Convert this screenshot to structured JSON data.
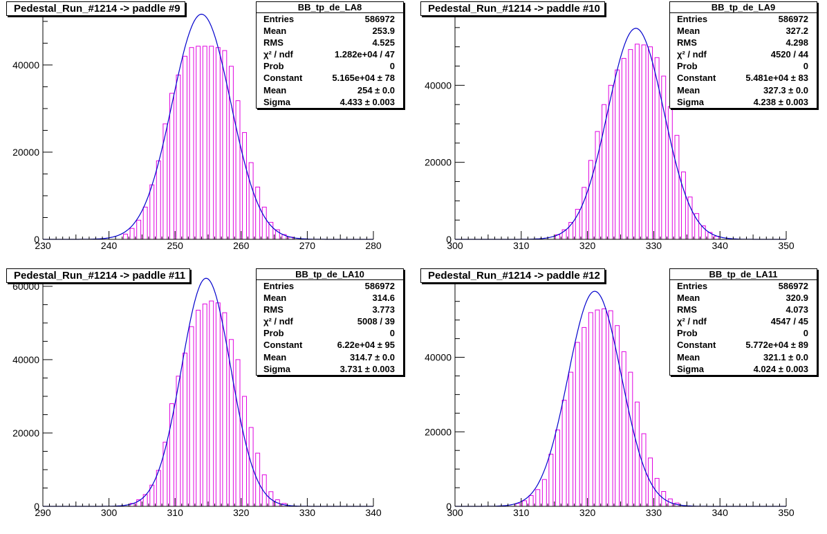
{
  "colors": {
    "histogram": "#e000e0",
    "fit": "#0000cc",
    "frame": "#000000"
  },
  "panels": [
    {
      "title": "Pedestal_Run_#1214 -> paddle #9",
      "stats_title": "BB_tp_de_LA8",
      "stats": [
        {
          "label": "Entries",
          "value": "586972"
        },
        {
          "label": "Mean",
          "value": "253.9"
        },
        {
          "label": "RMS",
          "value": "4.525"
        },
        {
          "label": "χ² / ndf",
          "value": "1.282e+04 / 47"
        },
        {
          "label": "Prob",
          "value": "0"
        },
        {
          "label": "Constant",
          "value": "5.165e+04 ± 78"
        },
        {
          "label": "Mean",
          "value": "254 ± 0.0"
        },
        {
          "label": "Sigma",
          "value": "4.433 ± 0.003"
        }
      ]
    },
    {
      "title": "Pedestal_Run_#1214 -> paddle #10",
      "stats_title": "BB_tp_de_LA9",
      "stats": [
        {
          "label": "Entries",
          "value": "586972"
        },
        {
          "label": "Mean",
          "value": "327.2"
        },
        {
          "label": "RMS",
          "value": "4.298"
        },
        {
          "label": "χ² / ndf",
          "value": "4520 / 44"
        },
        {
          "label": "Prob",
          "value": "0"
        },
        {
          "label": "Constant",
          "value": "5.481e+04 ± 83"
        },
        {
          "label": "Mean",
          "value": "327.3 ± 0.0"
        },
        {
          "label": "Sigma",
          "value": "4.238 ± 0.003"
        }
      ]
    },
    {
      "title": "Pedestal_Run_#1214 -> paddle #11",
      "stats_title": "BB_tp_de_LA10",
      "stats": [
        {
          "label": "Entries",
          "value": "586972"
        },
        {
          "label": "Mean",
          "value": "314.6"
        },
        {
          "label": "RMS",
          "value": "3.773"
        },
        {
          "label": "χ² / ndf",
          "value": "5008 / 39"
        },
        {
          "label": "Prob",
          "value": "0"
        },
        {
          "label": "Constant",
          "value": "6.22e+04 ± 95"
        },
        {
          "label": "Mean",
          "value": "314.7 ± 0.0"
        },
        {
          "label": "Sigma",
          "value": "3.731 ± 0.003"
        }
      ]
    },
    {
      "title": "Pedestal_Run_#1214 -> paddle #12",
      "stats_title": "BB_tp_de_LA11",
      "stats": [
        {
          "label": "Entries",
          "value": "586972"
        },
        {
          "label": "Mean",
          "value": "320.9"
        },
        {
          "label": "RMS",
          "value": "4.073"
        },
        {
          "label": "χ² / ndf",
          "value": "4547 / 45"
        },
        {
          "label": "Prob",
          "value": "0"
        },
        {
          "label": "Constant",
          "value": "5.772e+04 ± 89"
        },
        {
          "label": "Mean",
          "value": "321.1 ± 0.0"
        },
        {
          "label": "Sigma",
          "value": "4.024 ± 0.003"
        }
      ]
    }
  ],
  "chart_data": [
    {
      "type": "bar",
      "xlim": [
        230,
        280
      ],
      "ylim": [
        0,
        53000
      ],
      "x_ticks": [
        "230",
        "240",
        "250",
        "260",
        "270",
        "280"
      ],
      "y_ticks": [
        "0",
        "20000",
        "40000"
      ],
      "bin_width": 1,
      "bins": [
        {
          "x": 242,
          "y": 1200
        },
        {
          "x": 243,
          "y": 2500
        },
        {
          "x": 244,
          "y": 4400
        },
        {
          "x": 245,
          "y": 7400
        },
        {
          "x": 246,
          "y": 12500
        },
        {
          "x": 247,
          "y": 18000
        },
        {
          "x": 248,
          "y": 26500
        },
        {
          "x": 249,
          "y": 33500
        },
        {
          "x": 250,
          "y": 37700
        },
        {
          "x": 251,
          "y": 42000
        },
        {
          "x": 252,
          "y": 44000
        },
        {
          "x": 253,
          "y": 44300
        },
        {
          "x": 254,
          "y": 44300
        },
        {
          "x": 255,
          "y": 44300
        },
        {
          "x": 256,
          "y": 44000
        },
        {
          "x": 257,
          "y": 43300
        },
        {
          "x": 258,
          "y": 39700
        },
        {
          "x": 259,
          "y": 31800
        },
        {
          "x": 260,
          "y": 24500
        },
        {
          "x": 261,
          "y": 17600
        },
        {
          "x": 262,
          "y": 12000
        },
        {
          "x": 263,
          "y": 7400
        },
        {
          "x": 264,
          "y": 3900
        },
        {
          "x": 265,
          "y": 2200
        },
        {
          "x": 266,
          "y": 1100
        },
        {
          "x": 267,
          "y": 500
        }
      ],
      "fit": {
        "constant": 51650,
        "mean": 254,
        "sigma": 4.433
      }
    },
    {
      "type": "bar",
      "xlim": [
        300,
        350
      ],
      "ylim": [
        0,
        60000
      ],
      "x_ticks": [
        "300",
        "310",
        "320",
        "330",
        "340",
        "350"
      ],
      "y_ticks": [
        "0",
        "20000",
        "40000"
      ],
      "bin_width": 1,
      "bins": [
        {
          "x": 315,
          "y": 1200
        },
        {
          "x": 316,
          "y": 2500
        },
        {
          "x": 317,
          "y": 4400
        },
        {
          "x": 318,
          "y": 7800
        },
        {
          "x": 319,
          "y": 13500
        },
        {
          "x": 320,
          "y": 20500
        },
        {
          "x": 321,
          "y": 28000
        },
        {
          "x": 322,
          "y": 35000
        },
        {
          "x": 323,
          "y": 40000
        },
        {
          "x": 324,
          "y": 44000
        },
        {
          "x": 325,
          "y": 47000
        },
        {
          "x": 326,
          "y": 49300
        },
        {
          "x": 327,
          "y": 50700
        },
        {
          "x": 328,
          "y": 50500
        },
        {
          "x": 329,
          "y": 50000
        },
        {
          "x": 330,
          "y": 47200
        },
        {
          "x": 331,
          "y": 42400
        },
        {
          "x": 332,
          "y": 34500
        },
        {
          "x": 333,
          "y": 27000
        },
        {
          "x": 334,
          "y": 17500
        },
        {
          "x": 335,
          "y": 11000
        },
        {
          "x": 336,
          "y": 6700
        },
        {
          "x": 337,
          "y": 3500
        },
        {
          "x": 338,
          "y": 1800
        },
        {
          "x": 339,
          "y": 800
        }
      ],
      "fit": {
        "constant": 54810,
        "mean": 327.3,
        "sigma": 4.238
      }
    },
    {
      "type": "bar",
      "xlim": [
        290,
        340
      ],
      "ylim": [
        0,
        63000
      ],
      "x_ticks": [
        "290",
        "300",
        "310",
        "320",
        "330",
        "340"
      ],
      "y_ticks": [
        "0",
        "20000",
        "40000",
        "60000"
      ],
      "bin_width": 1,
      "bins": [
        {
          "x": 303,
          "y": 800
        },
        {
          "x": 304,
          "y": 1800
        },
        {
          "x": 305,
          "y": 3200
        },
        {
          "x": 306,
          "y": 5800
        },
        {
          "x": 307,
          "y": 9800
        },
        {
          "x": 308,
          "y": 17500
        },
        {
          "x": 309,
          "y": 28000
        },
        {
          "x": 310,
          "y": 35500
        },
        {
          "x": 311,
          "y": 41800
        },
        {
          "x": 312,
          "y": 49000
        },
        {
          "x": 313,
          "y": 53500
        },
        {
          "x": 314,
          "y": 55200
        },
        {
          "x": 315,
          "y": 56000
        },
        {
          "x": 316,
          "y": 55500
        },
        {
          "x": 317,
          "y": 52800
        },
        {
          "x": 318,
          "y": 45500
        },
        {
          "x": 319,
          "y": 40000
        },
        {
          "x": 320,
          "y": 30000
        },
        {
          "x": 321,
          "y": 21500
        },
        {
          "x": 322,
          "y": 14500
        },
        {
          "x": 323,
          "y": 8600
        },
        {
          "x": 324,
          "y": 4000
        },
        {
          "x": 325,
          "y": 1800
        },
        {
          "x": 326,
          "y": 800
        }
      ],
      "fit": {
        "constant": 62200,
        "mean": 314.7,
        "sigma": 3.731
      }
    },
    {
      "type": "bar",
      "xlim": [
        300,
        350
      ],
      "ylim": [
        0,
        62000
      ],
      "x_ticks": [
        "300",
        "310",
        "320",
        "330",
        "340",
        "350"
      ],
      "y_ticks": [
        "0",
        "20000",
        "40000"
      ],
      "bin_width": 1,
      "bins": [
        {
          "x": 309,
          "y": 800
        },
        {
          "x": 310,
          "y": 1500
        },
        {
          "x": 311,
          "y": 2900
        },
        {
          "x": 312,
          "y": 4500
        },
        {
          "x": 313,
          "y": 7200
        },
        {
          "x": 314,
          "y": 14000
        },
        {
          "x": 315,
          "y": 20500
        },
        {
          "x": 316,
          "y": 28500
        },
        {
          "x": 317,
          "y": 36000
        },
        {
          "x": 318,
          "y": 44000
        },
        {
          "x": 319,
          "y": 48000
        },
        {
          "x": 320,
          "y": 52000
        },
        {
          "x": 321,
          "y": 52700
        },
        {
          "x": 322,
          "y": 53000
        },
        {
          "x": 323,
          "y": 52500
        },
        {
          "x": 324,
          "y": 48500
        },
        {
          "x": 325,
          "y": 41500
        },
        {
          "x": 326,
          "y": 36000
        },
        {
          "x": 327,
          "y": 28000
        },
        {
          "x": 328,
          "y": 19500
        },
        {
          "x": 329,
          "y": 13000
        },
        {
          "x": 330,
          "y": 7500
        },
        {
          "x": 331,
          "y": 4000
        },
        {
          "x": 332,
          "y": 2000
        },
        {
          "x": 333,
          "y": 900
        }
      ],
      "fit": {
        "constant": 57720,
        "mean": 321.1,
        "sigma": 4.024
      }
    }
  ]
}
